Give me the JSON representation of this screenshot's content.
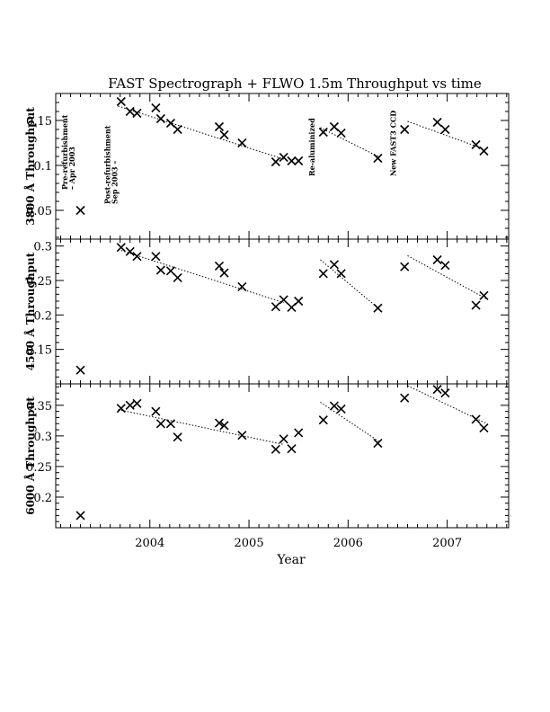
{
  "chart_data": {
    "type": "scatter",
    "title": "FAST Spectrograph + FLWO 1.5m Throughput vs time",
    "xlabel": "Year",
    "xlim": [
      2003.05,
      2007.62
    ],
    "x_ticks": [
      {
        "value": 2004,
        "label": "2004"
      },
      {
        "value": 2005,
        "label": "2005"
      },
      {
        "value": 2006,
        "label": "2006"
      },
      {
        "value": 2007,
        "label": "2007"
      }
    ],
    "panels": [
      {
        "ylabel": "3800 Å Throughput",
        "ylim": [
          0.018,
          0.18
        ],
        "y_ticks": [
          {
            "value": 0.05,
            "label": "0.05"
          },
          {
            "value": 0.1,
            "label": "0.1"
          },
          {
            "value": 0.15,
            "label": "0.15"
          }
        ],
        "points": [
          [
            2003.3,
            0.05
          ],
          [
            2003.71,
            0.171
          ],
          [
            2003.8,
            0.16
          ],
          [
            2003.87,
            0.158
          ],
          [
            2004.06,
            0.164
          ],
          [
            2004.11,
            0.152
          ],
          [
            2004.21,
            0.147
          ],
          [
            2004.28,
            0.14
          ],
          [
            2004.7,
            0.143
          ],
          [
            2004.75,
            0.134
          ],
          [
            2004.93,
            0.125
          ],
          [
            2005.27,
            0.104
          ],
          [
            2005.35,
            0.109
          ],
          [
            2005.43,
            0.105
          ],
          [
            2005.5,
            0.105
          ],
          [
            2005.75,
            0.137
          ],
          [
            2005.86,
            0.143
          ],
          [
            2005.93,
            0.136
          ],
          [
            2006.3,
            0.108
          ],
          [
            2006.57,
            0.14
          ],
          [
            2006.9,
            0.148
          ],
          [
            2006.98,
            0.14
          ],
          [
            2007.29,
            0.123
          ],
          [
            2007.37,
            0.116
          ]
        ],
        "trends": [
          [
            [
              2003.68,
              0.166
            ],
            [
              2005.35,
              0.107
            ]
          ],
          [
            [
              2005.72,
              0.142
            ],
            [
              2006.32,
              0.109
            ]
          ],
          [
            [
              2006.6,
              0.149
            ],
            [
              2007.4,
              0.117
            ]
          ]
        ],
        "annotations": [
          {
            "text": "Pre-refurbishment",
            "x": 2003.17,
            "y": 0.073
          },
          {
            "text": "– Apr 2003",
            "x": 2003.24,
            "y": 0.073
          },
          {
            "text": "Post-refurbishment",
            "x": 2003.6,
            "y": 0.057
          },
          {
            "text": "Sep 2003 –",
            "x": 2003.67,
            "y": 0.057
          },
          {
            "text": "Re-aluminized",
            "x": 2005.66,
            "y": 0.088
          },
          {
            "text": "New FAST3 CCD",
            "x": 2006.48,
            "y": 0.088
          }
        ]
      },
      {
        "ylabel": "4500 Å Throughput",
        "ylim": [
          0.1,
          0.31
        ],
        "y_ticks": [
          {
            "value": 0.15,
            "label": "0.15"
          },
          {
            "value": 0.2,
            "label": "0.2"
          },
          {
            "value": 0.25,
            "label": "0.25"
          },
          {
            "value": 0.3,
            "label": "0.3"
          }
        ],
        "points": [
          [
            2003.3,
            0.12
          ],
          [
            2003.71,
            0.298
          ],
          [
            2003.8,
            0.292
          ],
          [
            2003.87,
            0.285
          ],
          [
            2004.06,
            0.285
          ],
          [
            2004.11,
            0.265
          ],
          [
            2004.21,
            0.264
          ],
          [
            2004.28,
            0.254
          ],
          [
            2004.7,
            0.271
          ],
          [
            2004.75,
            0.261
          ],
          [
            2004.93,
            0.241
          ],
          [
            2005.27,
            0.212
          ],
          [
            2005.35,
            0.222
          ],
          [
            2005.43,
            0.211
          ],
          [
            2005.5,
            0.22
          ],
          [
            2005.75,
            0.26
          ],
          [
            2005.86,
            0.273
          ],
          [
            2005.93,
            0.26
          ],
          [
            2006.3,
            0.21
          ],
          [
            2006.57,
            0.27
          ],
          [
            2006.9,
            0.28
          ],
          [
            2006.98,
            0.272
          ],
          [
            2007.29,
            0.214
          ],
          [
            2007.37,
            0.228
          ]
        ],
        "trends": [
          [
            [
              2003.68,
              0.295
            ],
            [
              2005.35,
              0.218
            ]
          ],
          [
            [
              2005.72,
              0.28
            ],
            [
              2006.32,
              0.208
            ]
          ],
          [
            [
              2006.6,
              0.286
            ],
            [
              2007.4,
              0.223
            ]
          ]
        ],
        "annotations": []
      },
      {
        "ylabel": "6000 Å Throughput",
        "ylim": [
          0.15,
          0.385
        ],
        "y_ticks": [
          {
            "value": 0.2,
            "label": "0.2"
          },
          {
            "value": 0.25,
            "label": "0.25"
          },
          {
            "value": 0.3,
            "label": "0.3"
          },
          {
            "value": 0.35,
            "label": "0.35"
          }
        ],
        "points": [
          [
            2003.3,
            0.17
          ],
          [
            2003.71,
            0.345
          ],
          [
            2003.8,
            0.35
          ],
          [
            2003.87,
            0.353
          ],
          [
            2004.06,
            0.34
          ],
          [
            2004.11,
            0.32
          ],
          [
            2004.21,
            0.32
          ],
          [
            2004.28,
            0.298
          ],
          [
            2004.7,
            0.321
          ],
          [
            2004.75,
            0.317
          ],
          [
            2004.93,
            0.301
          ],
          [
            2005.27,
            0.278
          ],
          [
            2005.35,
            0.295
          ],
          [
            2005.43,
            0.279
          ],
          [
            2005.5,
            0.305
          ],
          [
            2005.75,
            0.326
          ],
          [
            2005.86,
            0.349
          ],
          [
            2005.93,
            0.344
          ],
          [
            2006.3,
            0.288
          ],
          [
            2006.57,
            0.362
          ],
          [
            2006.9,
            0.376
          ],
          [
            2006.98,
            0.37
          ],
          [
            2007.29,
            0.327
          ],
          [
            2007.37,
            0.313
          ]
        ],
        "trends": [
          [
            [
              2003.68,
              0.343
            ],
            [
              2005.35,
              0.286
            ]
          ],
          [
            [
              2005.72,
              0.355
            ],
            [
              2006.32,
              0.29
            ]
          ],
          [
            [
              2006.6,
              0.382
            ],
            [
              2007.4,
              0.32
            ]
          ]
        ],
        "annotations": []
      }
    ]
  }
}
